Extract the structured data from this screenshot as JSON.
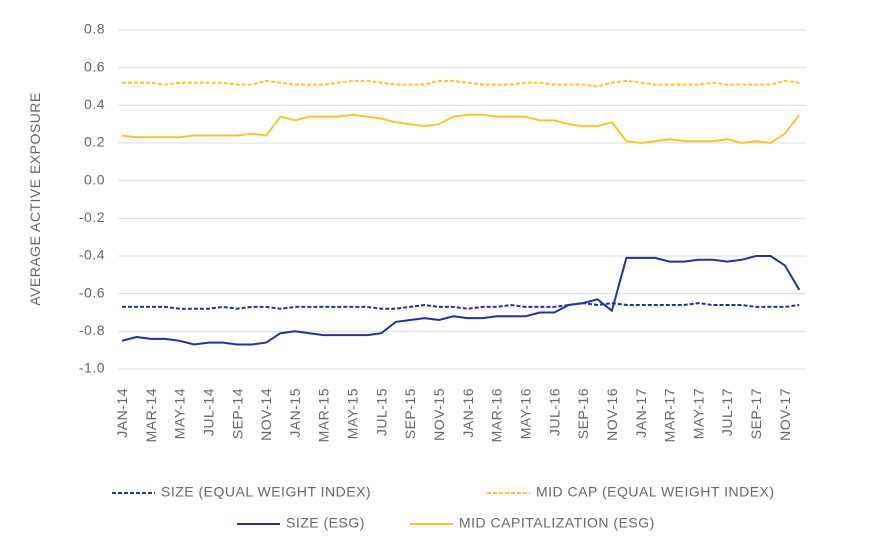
{
  "chart_data": {
    "type": "line",
    "y_axis_label": "AVERAGE ACTIVE EXPOSURE",
    "categories": [
      "JAN-14",
      null,
      "MAR-14",
      null,
      "MAY-14",
      null,
      "JUL-14",
      null,
      "SEP-14",
      null,
      "NOV-14",
      null,
      "JAN-15",
      null,
      "MAR-15",
      null,
      "MAY-15",
      null,
      "JUL-15",
      null,
      "SEP-15",
      null,
      "NOV-15",
      null,
      "JAN-16",
      null,
      "MAR-16",
      null,
      "MAY-16",
      null,
      "JUL-16",
      null,
      "SEP-16",
      null,
      "NOV-16",
      null,
      "JAN-17",
      null,
      "MAR-17",
      null,
      "MAY-17",
      null,
      "JUL-17",
      null,
      "SEP-17",
      null,
      "NOV-17",
      null
    ],
    "ylim": [
      -1.0,
      0.8
    ],
    "yticks": [
      0.8,
      0.6,
      0.4,
      0.2,
      {
        "value": 0,
        "label": "0.0"
      },
      -0.2,
      -0.4,
      -0.6,
      -0.8,
      {
        "value": -1,
        "label": "-1.0"
      }
    ],
    "grid": true,
    "series": [
      {
        "name": "SIZE (EQUAL WEIGHT INDEX)",
        "color": "#24309c",
        "line_style": "dashed",
        "values": [
          -0.67,
          -0.67,
          -0.67,
          -0.67,
          -0.68,
          -0.68,
          -0.68,
          -0.67,
          -0.68,
          -0.67,
          -0.67,
          -0.68,
          -0.67,
          -0.67,
          -0.67,
          -0.67,
          -0.67,
          -0.67,
          -0.68,
          -0.68,
          -0.67,
          -0.66,
          -0.67,
          -0.67,
          -0.68,
          -0.67,
          -0.67,
          -0.66,
          -0.67,
          -0.67,
          -0.67,
          -0.66,
          -0.65,
          -0.66,
          -0.65,
          -0.66,
          -0.66,
          -0.66,
          -0.66,
          -0.66,
          -0.65,
          -0.66,
          -0.66,
          -0.66,
          -0.67,
          -0.67,
          -0.67,
          -0.66
        ]
      },
      {
        "name": "MID CAP (EQUAL WEIGHT INDEX)",
        "color": "#f5c533",
        "line_style": "dashed",
        "values": [
          0.52,
          0.52,
          0.52,
          0.51,
          0.52,
          0.52,
          0.52,
          0.52,
          0.51,
          0.51,
          0.53,
          0.52,
          0.51,
          0.51,
          0.51,
          0.52,
          0.53,
          0.53,
          0.52,
          0.51,
          0.51,
          0.51,
          0.53,
          0.53,
          0.52,
          0.51,
          0.51,
          0.51,
          0.52,
          0.52,
          0.51,
          0.51,
          0.51,
          0.5,
          0.52,
          0.53,
          0.52,
          0.51,
          0.51,
          0.51,
          0.51,
          0.52,
          0.51,
          0.51,
          0.51,
          0.51,
          0.53,
          0.52
        ]
      },
      {
        "name": "SIZE (ESG)",
        "color": "#24309c",
        "line_style": "solid",
        "values": [
          -0.85,
          -0.83,
          -0.84,
          -0.84,
          -0.85,
          -0.87,
          -0.86,
          -0.86,
          -0.87,
          -0.87,
          -0.86,
          -0.81,
          -0.8,
          -0.81,
          -0.82,
          -0.82,
          -0.82,
          -0.82,
          -0.81,
          -0.75,
          -0.74,
          -0.73,
          -0.74,
          -0.72,
          -0.73,
          -0.73,
          -0.72,
          -0.72,
          -0.72,
          -0.7,
          -0.7,
          -0.66,
          -0.65,
          -0.63,
          -0.69,
          -0.41,
          -0.41,
          -0.41,
          -0.43,
          -0.43,
          -0.42,
          -0.42,
          -0.43,
          -0.42,
          -0.4,
          -0.4,
          -0.45,
          -0.58
        ]
      },
      {
        "name": "MID CAPITALIZATION (ESG)",
        "color": "#f5c533",
        "line_style": "solid",
        "values": [
          0.24,
          0.23,
          0.23,
          0.23,
          0.23,
          0.24,
          0.24,
          0.24,
          0.24,
          0.25,
          0.24,
          0.34,
          0.32,
          0.34,
          0.34,
          0.34,
          0.35,
          0.34,
          0.33,
          0.31,
          0.3,
          0.29,
          0.3,
          0.34,
          0.35,
          0.35,
          0.34,
          0.34,
          0.34,
          0.32,
          0.32,
          0.3,
          0.29,
          0.29,
          0.31,
          0.21,
          0.2,
          0.21,
          0.22,
          0.21,
          0.21,
          0.21,
          0.22,
          0.2,
          0.21,
          0.2,
          0.25,
          0.35
        ]
      }
    ]
  }
}
